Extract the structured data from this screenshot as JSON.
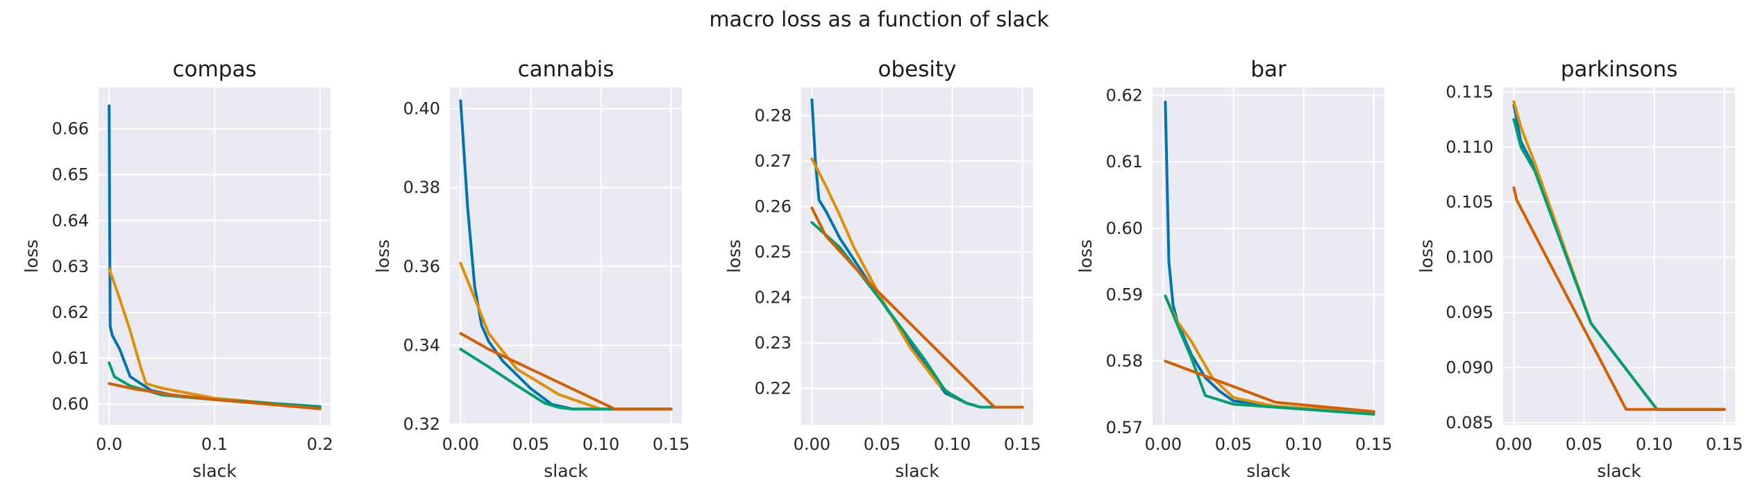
{
  "figure": {
    "title": "macro loss as a function of slack"
  },
  "palette": [
    "#0173b2",
    "#de8f05",
    "#029e73",
    "#d55e00"
  ],
  "style": {
    "panel_bg": "#eaeaf2",
    "grid": "#ffffff",
    "grid_on": true
  },
  "chart_data": [
    {
      "type": "line",
      "title": "compas",
      "xlabel": "slack",
      "ylabel": "loss",
      "xlim": [
        -0.01,
        0.21
      ],
      "ylim": [
        0.5955,
        0.669
      ],
      "xticks": [
        0.0,
        0.1,
        0.2
      ],
      "xtick_labels": [
        "0.0",
        "0.1",
        "0.2"
      ],
      "yticks": [
        0.6,
        0.61,
        0.62,
        0.63,
        0.64,
        0.65,
        0.66
      ],
      "ytick_labels": [
        "0.60",
        "0.61",
        "0.62",
        "0.63",
        "0.64",
        "0.65",
        "0.66"
      ],
      "series": [
        {
          "x": [
            0.0,
            0.0005,
            0.001,
            0.003,
            0.01,
            0.02,
            0.04,
            0.06,
            0.1,
            0.2
          ],
          "y": [
            0.665,
            0.64,
            0.617,
            0.615,
            0.612,
            0.606,
            0.603,
            0.602,
            0.601,
            0.5995
          ]
        },
        {
          "x": [
            0.0,
            0.01,
            0.02,
            0.03,
            0.035,
            0.05,
            0.1,
            0.2
          ],
          "y": [
            0.6295,
            0.623,
            0.616,
            0.608,
            0.6045,
            0.6035,
            0.6013,
            0.5993
          ]
        },
        {
          "x": [
            0.0,
            0.005,
            0.02,
            0.05,
            0.1,
            0.2
          ],
          "y": [
            0.609,
            0.606,
            0.604,
            0.602,
            0.601,
            0.5995
          ]
        },
        {
          "x": [
            0.0,
            0.02,
            0.06,
            0.1,
            0.2
          ],
          "y": [
            0.6045,
            0.6035,
            0.602,
            0.601,
            0.599
          ]
        }
      ]
    },
    {
      "type": "line",
      "title": "cannabis",
      "xlabel": "slack",
      "ylabel": "loss",
      "xlim": [
        -0.0076,
        0.1576
      ],
      "ylim": [
        0.3198,
        0.4054
      ],
      "xticks": [
        0.0,
        0.05,
        0.1,
        0.15
      ],
      "xtick_labels": [
        "0.00",
        "0.05",
        "0.10",
        "0.15"
      ],
      "yticks": [
        0.32,
        0.34,
        0.36,
        0.38,
        0.4
      ],
      "ytick_labels": [
        "0.32",
        "0.34",
        "0.36",
        "0.38",
        "0.40"
      ],
      "series": [
        {
          "x": [
            0.0,
            0.005,
            0.01,
            0.015,
            0.02,
            0.03,
            0.05,
            0.065,
            0.08,
            0.1,
            0.15
          ],
          "y": [
            0.402,
            0.375,
            0.355,
            0.345,
            0.341,
            0.336,
            0.329,
            0.325,
            0.3238,
            0.3238,
            0.3238
          ]
        },
        {
          "x": [
            0.0,
            0.01,
            0.02,
            0.04,
            0.07,
            0.1,
            0.15
          ],
          "y": [
            0.3608,
            0.352,
            0.343,
            0.334,
            0.3275,
            0.3238,
            0.3238
          ]
        },
        {
          "x": [
            0.0,
            0.02,
            0.04,
            0.06,
            0.07,
            0.08,
            0.1,
            0.15
          ],
          "y": [
            0.339,
            0.3345,
            0.3298,
            0.3253,
            0.3242,
            0.3238,
            0.3238,
            0.3238
          ]
        },
        {
          "x": [
            0.0,
            0.02,
            0.11,
            0.15
          ],
          "y": [
            0.343,
            0.339,
            0.3238,
            0.3238
          ]
        }
      ]
    },
    {
      "type": "line",
      "title": "obesity",
      "xlabel": "slack",
      "ylabel": "loss",
      "xlim": [
        -0.0076,
        0.1576
      ],
      "ylim": [
        0.212,
        0.2862
      ],
      "xticks": [
        0.0,
        0.05,
        0.1,
        0.15
      ],
      "xtick_labels": [
        "0.00",
        "0.05",
        "0.10",
        "0.15"
      ],
      "yticks": [
        0.22,
        0.23,
        0.24,
        0.25,
        0.26,
        0.27,
        0.28
      ],
      "ytick_labels": [
        "0.22",
        "0.23",
        "0.24",
        "0.25",
        "0.26",
        "0.27",
        "0.28"
      ],
      "series": [
        {
          "x": [
            0.0,
            0.0025,
            0.005,
            0.01,
            0.02,
            0.05,
            0.08,
            0.095,
            0.11,
            0.12,
            0.13,
            0.15
          ],
          "y": [
            0.2835,
            0.27,
            0.2615,
            0.259,
            0.253,
            0.239,
            0.2255,
            0.219,
            0.2168,
            0.2159,
            0.2159,
            0.2159
          ]
        },
        {
          "x": [
            0.0,
            0.01,
            0.02,
            0.03,
            0.05,
            0.07,
            0.09,
            0.1,
            0.11,
            0.12,
            0.13,
            0.15
          ],
          "y": [
            0.2705,
            0.2645,
            0.258,
            0.251,
            0.2395,
            0.229,
            0.221,
            0.2185,
            0.2168,
            0.2159,
            0.2159,
            0.2159
          ]
        },
        {
          "x": [
            0.0,
            0.02,
            0.05,
            0.08,
            0.095,
            0.11,
            0.12,
            0.13,
            0.15
          ],
          "y": [
            0.2565,
            0.251,
            0.239,
            0.2265,
            0.2195,
            0.2168,
            0.2159,
            0.2159,
            0.2159
          ]
        },
        {
          "x": [
            0.0,
            0.01,
            0.04,
            0.13,
            0.15
          ],
          "y": [
            0.2597,
            0.2535,
            0.2435,
            0.2159,
            0.2159
          ]
        }
      ]
    },
    {
      "type": "line",
      "title": "bar",
      "xlabel": "slack",
      "ylabel": "loss",
      "xlim": [
        -0.0076,
        0.1576
      ],
      "ylim": [
        0.5704,
        0.6212
      ],
      "xticks": [
        0.0,
        0.05,
        0.1,
        0.15
      ],
      "xtick_labels": [
        "0.00",
        "0.05",
        "0.10",
        "0.15"
      ],
      "yticks": [
        0.57,
        0.58,
        0.59,
        0.6,
        0.61,
        0.62
      ],
      "ytick_labels": [
        "0.57",
        "0.58",
        "0.59",
        "0.60",
        "0.61",
        "0.62"
      ],
      "series": [
        {
          "x": [
            0.0015,
            0.004,
            0.007,
            0.01,
            0.02,
            0.03,
            0.04,
            0.05,
            0.08,
            0.15
          ],
          "y": [
            0.619,
            0.595,
            0.5885,
            0.586,
            0.581,
            0.5775,
            0.5755,
            0.574,
            0.5732,
            0.5722
          ]
        },
        {
          "x": [
            0.0015,
            0.01,
            0.02,
            0.035,
            0.05,
            0.08,
            0.15
          ],
          "y": [
            0.5898,
            0.586,
            0.583,
            0.5775,
            0.5745,
            0.5732,
            0.5722
          ]
        },
        {
          "x": [
            0.0015,
            0.01,
            0.02,
            0.03,
            0.05,
            0.15
          ],
          "y": [
            0.5898,
            0.5855,
            0.5805,
            0.5748,
            0.5735,
            0.572
          ]
        },
        {
          "x": [
            0.0015,
            0.08,
            0.15
          ],
          "y": [
            0.58,
            0.5738,
            0.5724
          ]
        }
      ]
    },
    {
      "type": "line",
      "title": "parkinsons",
      "xlabel": "slack",
      "ylabel": "loss",
      "xlim": [
        -0.0076,
        0.1576
      ],
      "ylim": [
        0.0848,
        0.1154
      ],
      "xticks": [
        0.0,
        0.05,
        0.1,
        0.15
      ],
      "xtick_labels": [
        "0.00",
        "0.05",
        "0.10",
        "0.15"
      ],
      "yticks": [
        0.085,
        0.09,
        0.095,
        0.1,
        0.105,
        0.11,
        0.115
      ],
      "ytick_labels": [
        "0.085",
        "0.090",
        "0.095",
        "0.100",
        "0.105",
        "0.110",
        "0.115"
      ],
      "series": [
        {
          "x": [
            0.0,
            0.005,
            0.015,
            0.055,
            0.102,
            0.15
          ],
          "y": [
            0.1138,
            0.1105,
            0.108,
            0.094,
            0.0862,
            0.0862
          ]
        },
        {
          "x": [
            0.0,
            0.005,
            0.015,
            0.055,
            0.102,
            0.15
          ],
          "y": [
            0.1141,
            0.1118,
            0.1085,
            0.094,
            0.0862,
            0.0862
          ]
        },
        {
          "x": [
            0.0,
            0.005,
            0.015,
            0.055,
            0.102,
            0.15
          ],
          "y": [
            0.1125,
            0.11,
            0.1078,
            0.094,
            0.0862,
            0.0862
          ]
        },
        {
          "x": [
            0.0,
            0.002,
            0.08,
            0.15
          ],
          "y": [
            0.1063,
            0.1052,
            0.0862,
            0.0862
          ]
        }
      ]
    }
  ]
}
